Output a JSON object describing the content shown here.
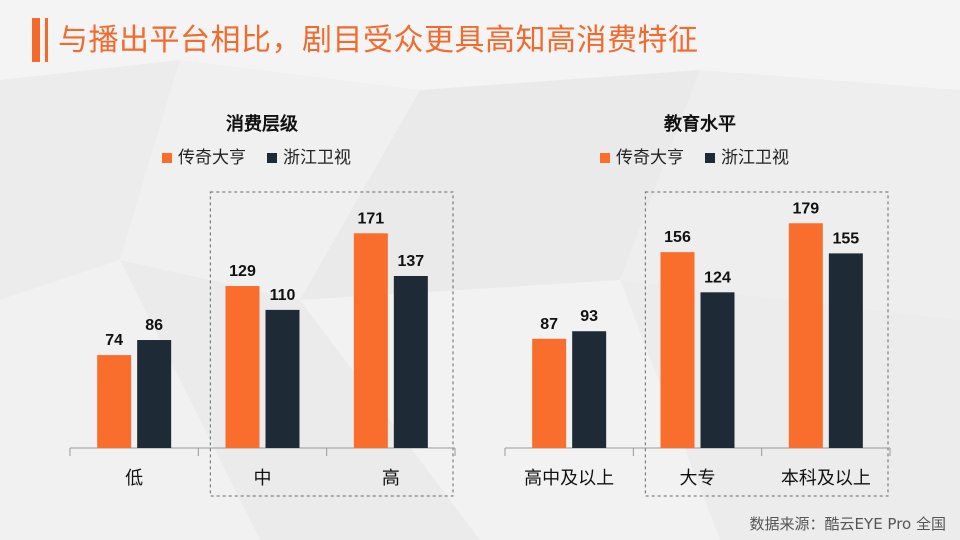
{
  "page": {
    "title": "与播出平台相比，剧目受众更具高知高消费特征",
    "source": "数据来源：酷云EYE Pro 全国"
  },
  "colors": {
    "accent": "#f26a2e",
    "series_a": "#fa6e2d",
    "series_b": "#1e2b37"
  },
  "chart_data": [
    {
      "type": "bar",
      "title": "消费层级",
      "categories": [
        "低",
        "中",
        "高"
      ],
      "series": [
        {
          "name": "传奇大亨",
          "values": [
            74,
            129,
            171
          ]
        },
        {
          "name": "浙江卫视",
          "values": [
            86,
            110,
            137
          ]
        }
      ],
      "ylim": [
        0,
        180
      ],
      "legend": "top",
      "grid": false,
      "highlight_categories": [
        "中",
        "高"
      ]
    },
    {
      "type": "bar",
      "title": "教育水平",
      "categories": [
        "高中及以上",
        "大专",
        "本科及以上"
      ],
      "series": [
        {
          "name": "传奇大亨",
          "values": [
            87,
            156,
            179
          ]
        },
        {
          "name": "浙江卫视",
          "values": [
            93,
            124,
            155
          ]
        }
      ],
      "ylim": [
        0,
        180
      ],
      "legend": "top",
      "grid": false,
      "highlight_categories": [
        "大专",
        "本科及以上"
      ]
    }
  ]
}
